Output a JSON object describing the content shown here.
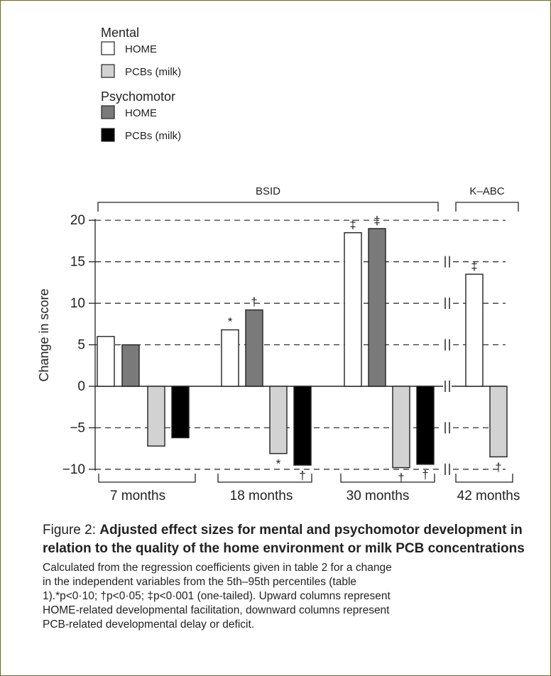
{
  "chart_data": {
    "type": "bar",
    "ylabel": "Change in score",
    "ylim": [
      -10,
      20
    ],
    "yticks": [
      -10,
      -5,
      0,
      5,
      10,
      15,
      20
    ],
    "ytick_labels": [
      "−10",
      "−5",
      "0",
      "5",
      "10",
      "15",
      "20"
    ],
    "grid": "dashed-horizontal",
    "legend": {
      "placement": "top-left",
      "groups": [
        {
          "title": "Mental",
          "entries": [
            {
              "label": "HOME",
              "series": "mental_home"
            },
            {
              "label": "PCBs (milk)",
              "series": "mental_pcb"
            }
          ]
        },
        {
          "title": "Psychomotor",
          "entries": [
            {
              "label": "HOME",
              "series": "psycho_home"
            },
            {
              "label": "PCBs (milk)",
              "series": "psycho_pcb"
            }
          ]
        }
      ]
    },
    "series_colors": {
      "mental_home": "#ffffff",
      "mental_pcb": "#d2d2d2",
      "psycho_home": "#7a7a7a",
      "psycho_pcb": "#000000"
    },
    "test_groups": [
      {
        "label": "BSID",
        "covers": [
          "7 months",
          "18 months",
          "30 months"
        ]
      },
      {
        "label": "K–ABC",
        "covers": [
          "42 months"
        ]
      }
    ],
    "categories": [
      "7 months",
      "18 months",
      "30 months",
      "42 months"
    ],
    "groups": [
      {
        "category": "7 months",
        "bars": [
          {
            "series": "mental_home",
            "value": 6.0,
            "sig": ""
          },
          {
            "series": "psycho_home",
            "value": 5.0,
            "sig": ""
          },
          {
            "series": "mental_pcb",
            "value": -7.2,
            "sig": ""
          },
          {
            "series": "psycho_pcb",
            "value": -6.2,
            "sig": ""
          }
        ]
      },
      {
        "category": "18 months",
        "bars": [
          {
            "series": "mental_home",
            "value": 6.8,
            "sig": "*"
          },
          {
            "series": "psycho_home",
            "value": 9.2,
            "sig": "†"
          },
          {
            "series": "mental_pcb",
            "value": -8.1,
            "sig": "*"
          },
          {
            "series": "psycho_pcb",
            "value": -9.5,
            "sig": "†"
          }
        ]
      },
      {
        "category": "30 months",
        "bars": [
          {
            "series": "mental_home",
            "value": 18.5,
            "sig": "‡"
          },
          {
            "series": "psycho_home",
            "value": 19.0,
            "sig": "‡"
          },
          {
            "series": "mental_pcb",
            "value": -9.8,
            "sig": "†"
          },
          {
            "series": "psycho_pcb",
            "value": -9.4,
            "sig": "†"
          }
        ]
      },
      {
        "category": "42 months",
        "bars": [
          {
            "series": "mental_home",
            "value": 13.5,
            "sig": "‡"
          },
          {
            "series": "mental_pcb",
            "value": -8.5,
            "sig": "†"
          }
        ]
      }
    ]
  },
  "caption": {
    "label": "Figure 2: ",
    "title": "Adjusted effect sizes for mental and psychomotor development in relation to the quality of the home environment or milk PCB concentrations",
    "text": "Calculated from the regression coefficients given in table 2 for a change\nin the independent variables from the 5th–95th percentiles (table\n1).*p<0·10; †p<0·05; ‡p<0·001 (one-tailed). Upward columns represent\nHOME-related developmental facilitation, downward columns represent\nPCB-related developmental delay or deficit."
  }
}
